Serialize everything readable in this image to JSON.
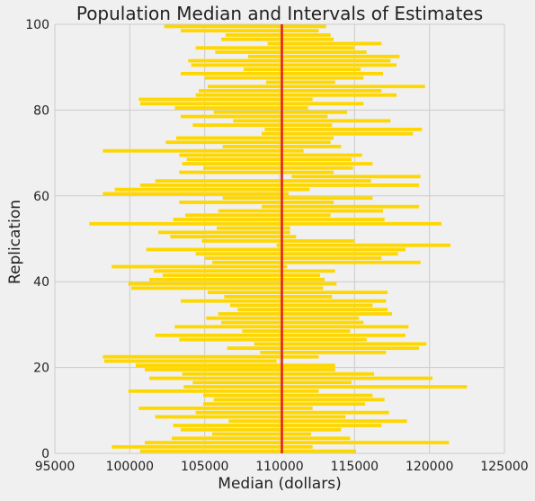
{
  "chart_data": {
    "type": "bar",
    "orientation": "horizontal-intervals",
    "title": "Population Median and Intervals of Estimates",
    "xlabel": "Median (dollars)",
    "ylabel": "Replication",
    "xlim": [
      95000,
      125000
    ],
    "ylim": [
      0,
      100
    ],
    "xticks": [
      "95000",
      "100000",
      "105000",
      "110000",
      "115000",
      "120000",
      "125000"
    ],
    "xtick_values": [
      95000,
      100000,
      105000,
      110000,
      115000,
      120000,
      125000
    ],
    "yticks": [
      "0",
      "20",
      "40",
      "60",
      "80",
      "100"
    ],
    "ytick_values": [
      0,
      20,
      40,
      60,
      80,
      100
    ],
    "grid": true,
    "interval_color": "#ffd700",
    "median_line_color": "#e31a1c",
    "median_line": 110150,
    "intervals": [
      [
        100700,
        115100
      ],
      [
        98800,
        112200
      ],
      [
        101000,
        121300
      ],
      [
        102800,
        114700
      ],
      [
        105500,
        112100
      ],
      [
        103400,
        114100
      ],
      [
        102900,
        116800
      ],
      [
        106600,
        118500
      ],
      [
        101700,
        114400
      ],
      [
        104400,
        117300
      ],
      [
        100600,
        112200
      ],
      [
        104900,
        115700
      ],
      [
        105600,
        117000
      ],
      [
        104900,
        116200
      ],
      [
        99900,
        112600
      ],
      [
        103600,
        122500
      ],
      [
        104200,
        114800
      ],
      [
        101300,
        120200
      ],
      [
        103500,
        116300
      ],
      [
        101000,
        113700
      ],
      [
        100400,
        113700
      ],
      [
        98300,
        109800
      ],
      [
        98200,
        112600
      ],
      [
        108700,
        117100
      ],
      [
        106500,
        119300
      ],
      [
        108300,
        119800
      ],
      [
        103300,
        115800
      ],
      [
        101700,
        118400
      ],
      [
        107500,
        114700
      ],
      [
        103000,
        118600
      ],
      [
        106100,
        115600
      ],
      [
        105100,
        115300
      ],
      [
        105900,
        117500
      ],
      [
        107200,
        117200
      ],
      [
        106700,
        116200
      ],
      [
        103400,
        117100
      ],
      [
        106300,
        113500
      ],
      [
        105200,
        117200
      ],
      [
        100100,
        112900
      ],
      [
        99900,
        113800
      ],
      [
        101300,
        113000
      ],
      [
        102200,
        112700
      ],
      [
        101600,
        113700
      ],
      [
        98800,
        110500
      ],
      [
        105500,
        119400
      ],
      [
        105000,
        116800
      ],
      [
        104400,
        117900
      ],
      [
        101100,
        118400
      ],
      [
        109800,
        121400
      ],
      [
        104800,
        115000
      ],
      [
        102700,
        111100
      ],
      [
        101900,
        110700
      ],
      [
        105800,
        110700
      ],
      [
        97300,
        120800
      ],
      [
        102900,
        117000
      ],
      [
        103700,
        113400
      ],
      [
        105900,
        116900
      ],
      [
        108800,
        119300
      ],
      [
        103300,
        113600
      ],
      [
        106200,
        116200
      ],
      [
        98200,
        110600
      ],
      [
        99000,
        112000
      ],
      [
        100700,
        119300
      ],
      [
        101700,
        116100
      ],
      [
        110800,
        119400
      ],
      [
        103300,
        113600
      ],
      [
        104900,
        114900
      ],
      [
        103500,
        116200
      ],
      [
        103800,
        114800
      ],
      [
        103300,
        115500
      ],
      [
        98200,
        111600
      ],
      [
        106200,
        114100
      ],
      [
        102400,
        113400
      ],
      [
        103100,
        113600
      ],
      [
        108800,
        118900
      ],
      [
        109000,
        119500
      ],
      [
        104200,
        113500
      ],
      [
        106900,
        117400
      ],
      [
        103400,
        113200
      ],
      [
        105600,
        114500
      ],
      [
        103000,
        111900
      ],
      [
        100700,
        115600
      ],
      [
        100600,
        112200
      ],
      [
        104400,
        117800
      ],
      [
        104600,
        116800
      ],
      [
        105200,
        119700
      ],
      [
        109100,
        113700
      ],
      [
        105000,
        115600
      ],
      [
        103400,
        116900
      ],
      [
        107600,
        115400
      ],
      [
        104100,
        117800
      ],
      [
        103900,
        117400
      ],
      [
        107900,
        118000
      ],
      [
        105700,
        115800
      ],
      [
        104400,
        115000
      ],
      [
        109200,
        116800
      ],
      [
        106100,
        113600
      ],
      [
        106400,
        113400
      ],
      [
        103400,
        112600
      ],
      [
        102300,
        113100
      ]
    ]
  }
}
